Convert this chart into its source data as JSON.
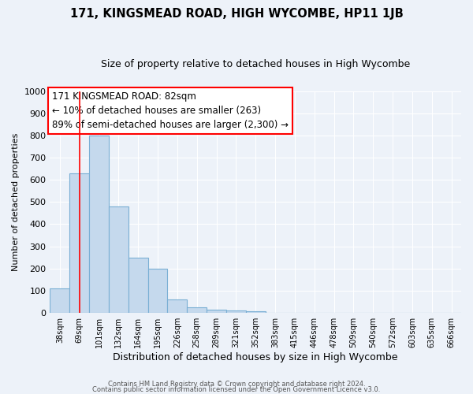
{
  "title": "171, KINGSMEAD ROAD, HIGH WYCOMBE, HP11 1JB",
  "subtitle": "Size of property relative to detached houses in High Wycombe",
  "xlabel": "Distribution of detached houses by size in High Wycombe",
  "ylabel": "Number of detached properties",
  "bar_labels": [
    "38sqm",
    "69sqm",
    "101sqm",
    "132sqm",
    "164sqm",
    "195sqm",
    "226sqm",
    "258sqm",
    "289sqm",
    "321sqm",
    "352sqm",
    "383sqm",
    "415sqm",
    "446sqm",
    "478sqm",
    "509sqm",
    "540sqm",
    "572sqm",
    "603sqm",
    "635sqm",
    "666sqm"
  ],
  "bar_values": [
    110,
    630,
    800,
    480,
    250,
    200,
    60,
    25,
    15,
    10,
    8,
    0,
    0,
    0,
    0,
    0,
    0,
    0,
    0,
    0,
    0
  ],
  "bar_color": "#c5d9ed",
  "bar_edge_color": "#7aafd4",
  "red_line_x": 1.0,
  "annotation_title": "171 KINGSMEAD ROAD: 82sqm",
  "annotation_line1": "← 10% of detached houses are smaller (263)",
  "annotation_line2": "89% of semi-detached houses are larger (2,300) →",
  "ylim": [
    0,
    1000
  ],
  "yticks": [
    0,
    100,
    200,
    300,
    400,
    500,
    600,
    700,
    800,
    900,
    1000
  ],
  "footer1": "Contains HM Land Registry data © Crown copyright and database right 2024.",
  "footer2": "Contains public sector information licensed under the Open Government Licence v3.0.",
  "bg_color": "#edf2f9",
  "grid_color": "#ffffff",
  "title_fontsize": 10.5,
  "subtitle_fontsize": 9
}
